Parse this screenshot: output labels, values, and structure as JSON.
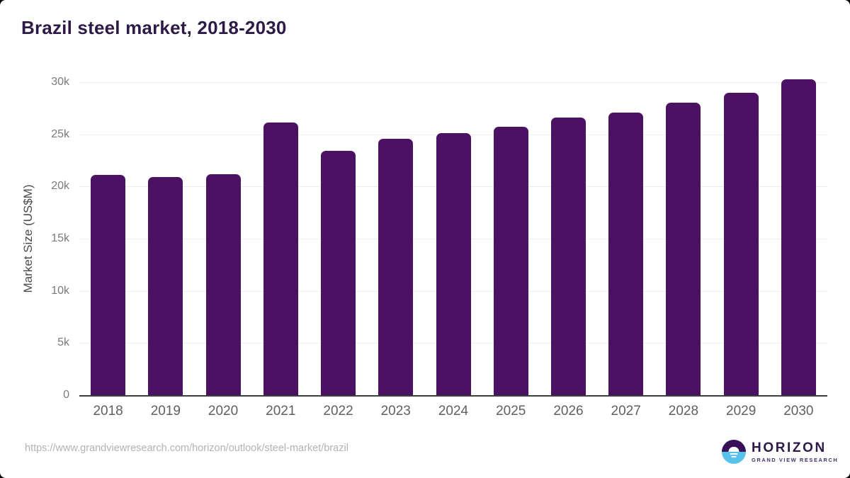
{
  "header": {
    "title": "Brazil steel market, 2018-2030"
  },
  "footer": {
    "source_url": "https://www.grandviewresearch.com/horizon/outlook/steel-market/brazil",
    "logo": {
      "brand": "HORIZON",
      "sub_brand": "GRAND VIEW RESEARCH"
    }
  },
  "colors": {
    "bar": "#4b1162",
    "title": "#2e1a47",
    "grid": "#ececec",
    "axis_line": "#3d3d3d",
    "y_tick_label": "#7a7a7a",
    "x_tick_label": "#606060",
    "axis_title": "#4a4a4a",
    "url_text": "#b3b3b3",
    "logo_purple": "#3a1158",
    "logo_blue": "#57c3ea",
    "logo_sub_text": "#43306b"
  },
  "chart_data": {
    "type": "bar",
    "title": "Brazil steel market, 2018-2030",
    "categories": [
      "2018",
      "2019",
      "2020",
      "2021",
      "2022",
      "2023",
      "2024",
      "2025",
      "2026",
      "2027",
      "2028",
      "2029",
      "2030"
    ],
    "values": [
      21100,
      20900,
      21150,
      26150,
      23400,
      24550,
      25100,
      25700,
      26600,
      27100,
      28000,
      29000,
      30300
    ],
    "unit": "US$M",
    "xlabel": "",
    "ylabel": "Market Size (US$M)",
    "ylim": [
      0,
      30000
    ],
    "yticks": [
      0,
      5000,
      10000,
      15000,
      20000,
      25000,
      30000
    ],
    "ytick_labels": [
      "0",
      "5k",
      "10k",
      "15k",
      "20k",
      "25k",
      "30k"
    ],
    "grid": true,
    "legend": false,
    "bar_color": "#4b1162"
  }
}
